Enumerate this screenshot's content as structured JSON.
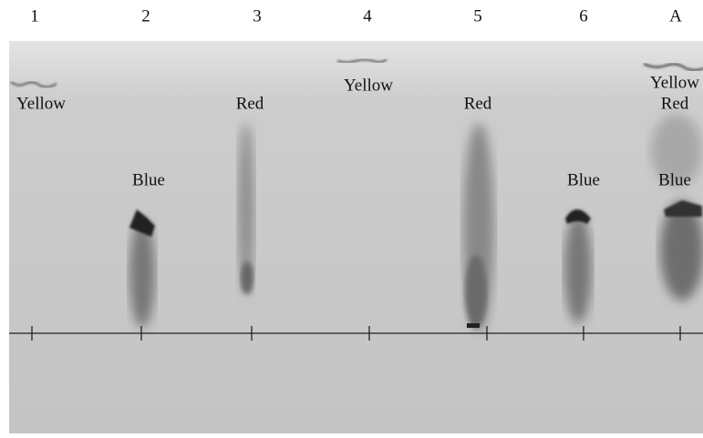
{
  "lanes": [
    {
      "label": "1",
      "spots": [
        "Yellow"
      ]
    },
    {
      "label": "2",
      "spots": [
        "Blue"
      ]
    },
    {
      "label": "3",
      "spots": [
        "Red"
      ]
    },
    {
      "label": "4",
      "spots": [
        "Yellow"
      ]
    },
    {
      "label": "5",
      "spots": [
        "Red"
      ]
    },
    {
      "label": "6",
      "spots": [
        "Blue"
      ]
    },
    {
      "label": "A",
      "spots": [
        "Yellow",
        "Red",
        "Blue"
      ]
    }
  ]
}
